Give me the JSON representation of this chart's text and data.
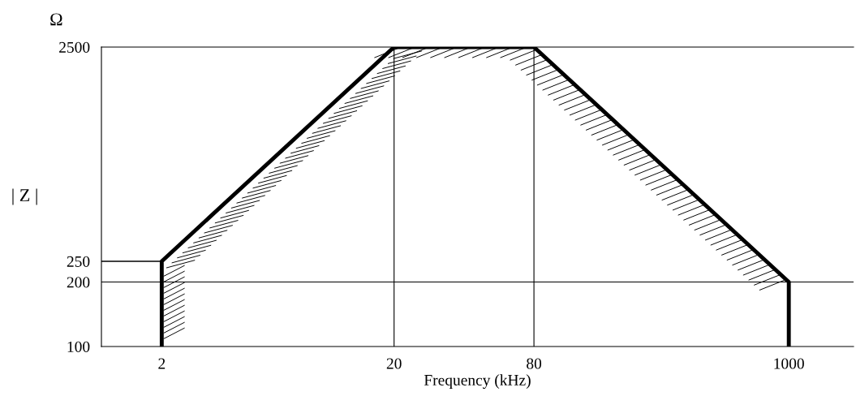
{
  "chart_data": {
    "type": "line",
    "xlabel": "Frequency (kHz)",
    "ylabel": "| Z |",
    "annotations": [
      "Ω"
    ],
    "log": "xy",
    "xlim": [
      1.1,
      1900
    ],
    "ylim": [
      100,
      2500
    ],
    "xticks": [
      2,
      20,
      80,
      1000
    ],
    "yticks": [
      100,
      200,
      250,
      2500
    ],
    "grid": false,
    "legend": false,
    "marker": "none",
    "line_style": "solid",
    "series": [
      {
        "x": [
          2,
          2,
          20,
          80,
          1000,
          1000
        ],
        "values": [
          100,
          250,
          2500,
          2500,
          200,
          100
        ],
        "color": "#000000"
      },
      {
        "x": [
          1.1,
          2
        ],
        "values": [
          250,
          250
        ],
        "color": "#000000"
      }
    ],
    "ref_lines": [
      {
        "axis": "x",
        "value": 20,
        "color": "#000000"
      },
      {
        "axis": "x",
        "value": 80,
        "color": "#000000"
      },
      {
        "axis": "y",
        "value": 200,
        "color": "#000000"
      }
    ]
  }
}
